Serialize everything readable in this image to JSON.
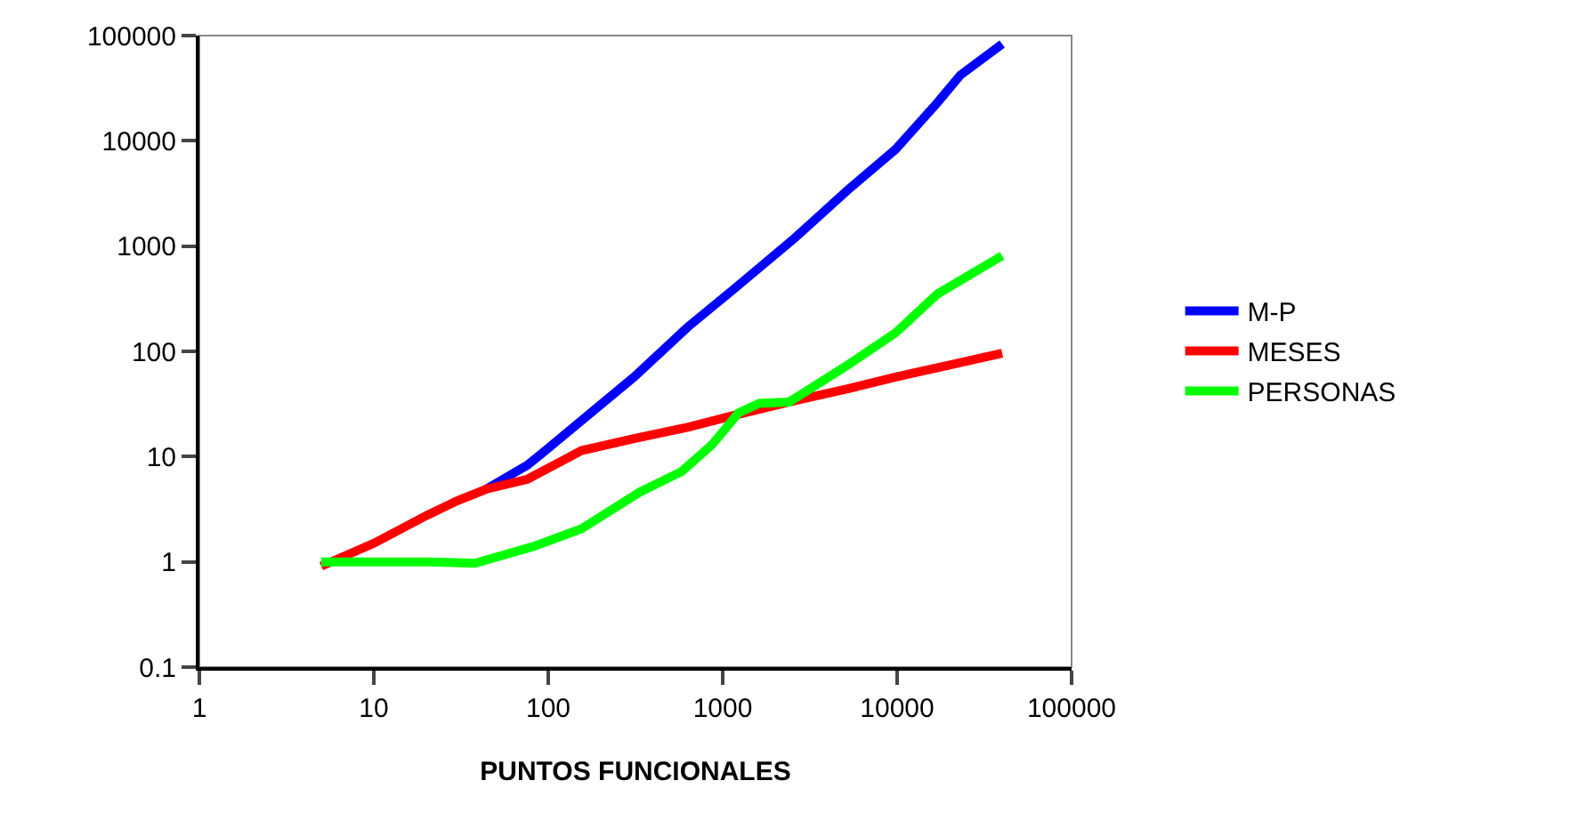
{
  "chart_data": {
    "type": "line",
    "xlabel": "PUNTOS FUNCIONALES",
    "log": "xy",
    "grid": false,
    "legend": "right",
    "marker": "none",
    "line_style": "solid",
    "xlim": [
      1,
      100000
    ],
    "xticks": [
      1,
      10,
      100,
      1000,
      10000,
      100000
    ],
    "ylim": [
      0.1,
      100000
    ],
    "yticks": [
      0.1,
      1,
      10,
      100,
      1000,
      10000,
      100000
    ],
    "series": [
      {
        "name": "M-P",
        "color": "#0000ff",
        "x": [
          44,
          76,
          100,
          155,
          310,
          630,
          1180,
          2600,
          5200,
          9800,
          17000,
          23000,
          40000
        ],
        "values": [
          4.9,
          8.3,
          12,
          22,
          57,
          170,
          400,
          1200,
          3400,
          8300,
          23000,
          42000,
          83000
        ]
      },
      {
        "name": "MESES",
        "color": "#ff0000",
        "x": [
          5,
          10,
          20,
          30,
          44,
          76,
          155,
          310,
          630,
          1180,
          2600,
          5200,
          9800,
          20000,
          40000
        ],
        "values": [
          0.91,
          1.5,
          2.75,
          3.8,
          4.9,
          6.1,
          11.4,
          14.8,
          19,
          24.8,
          34,
          44,
          57,
          74,
          96
        ]
      },
      {
        "name": "PERSONAS",
        "color": "#00ff00",
        "x": [
          5,
          10,
          20,
          38,
          82,
          155,
          335,
          580,
          870,
          1230,
          1620,
          2400,
          5200,
          9800,
          17000,
          40000
        ],
        "values": [
          1,
          1,
          1,
          0.97,
          1.4,
          2.06,
          4.6,
          7.2,
          13,
          26,
          32,
          33,
          74,
          150,
          350,
          810
        ]
      }
    ]
  }
}
